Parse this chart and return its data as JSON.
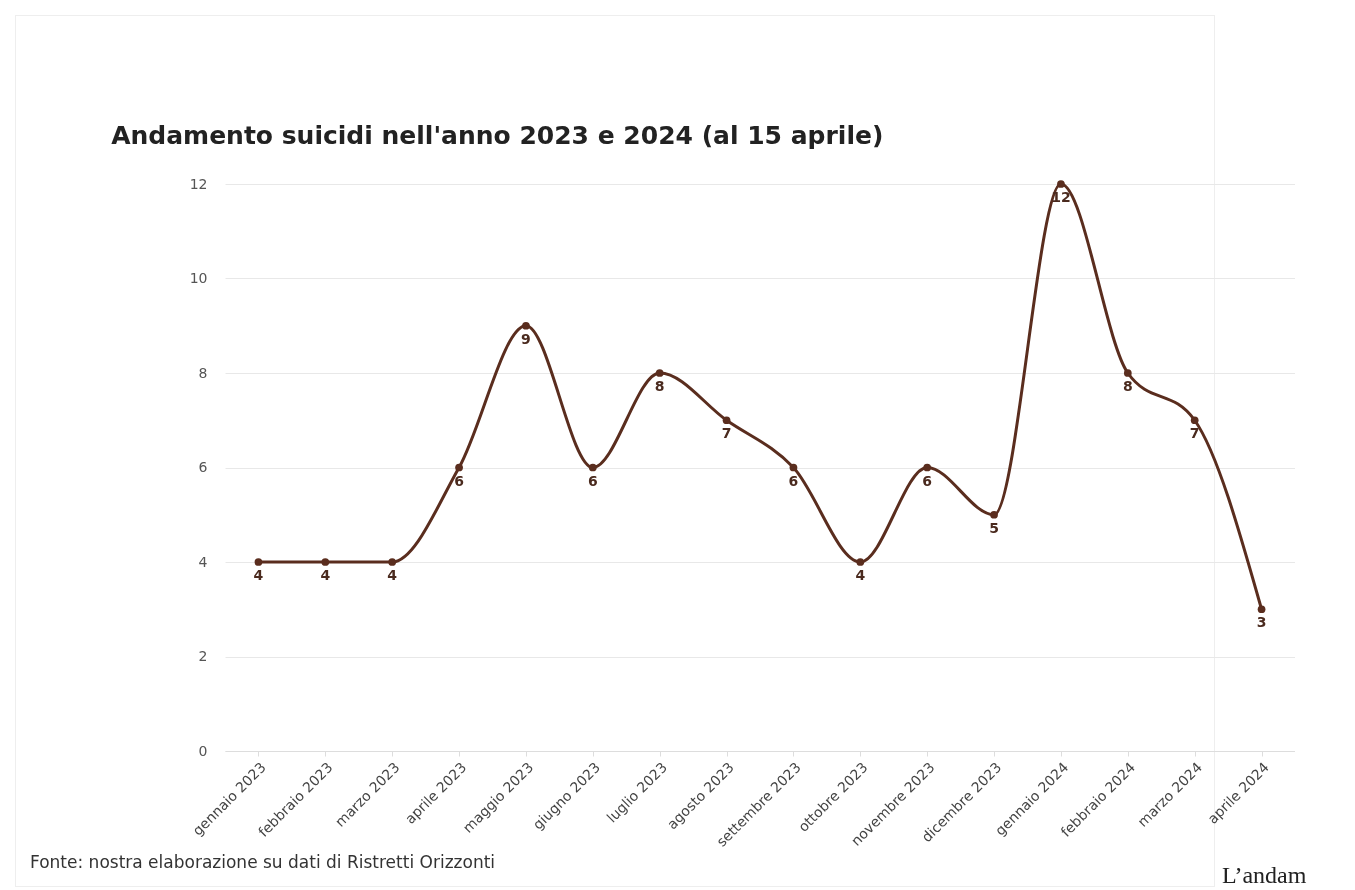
{
  "chart_data": {
    "type": "line",
    "title": "Andamento suicidi nell'anno 2023 e 2024 (al 15 aprile)",
    "categories": [
      "gennaio 2023",
      "febbraio 2023",
      "marzo 2023",
      "aprile 2023",
      "maggio 2023",
      "giugno 2023",
      "luglio 2023",
      "agosto 2023",
      "settembre 2023",
      "ottobre 2023",
      "novembre 2023",
      "dicembre 2023",
      "gennaio 2024",
      "febbraio 2024",
      "marzo 2024",
      "aprile 2024"
    ],
    "series": [
      {
        "color": "#5a2d1e",
        "values": [
          4,
          4,
          4,
          6,
          9,
          6,
          8,
          7,
          6,
          4,
          6,
          5,
          12,
          8,
          7,
          3
        ]
      }
    ],
    "ylim": [
      0,
      12
    ],
    "yticks": [
      0,
      2,
      4,
      6,
      8,
      10,
      12
    ],
    "grid": "y",
    "marker": "circle",
    "line_style": "solid",
    "data_labels": true,
    "legend": false,
    "annotations": [
      "Fonte: nostra elaborazione su dati di Ristretti Orizzonti",
      "L’andam"
    ]
  }
}
